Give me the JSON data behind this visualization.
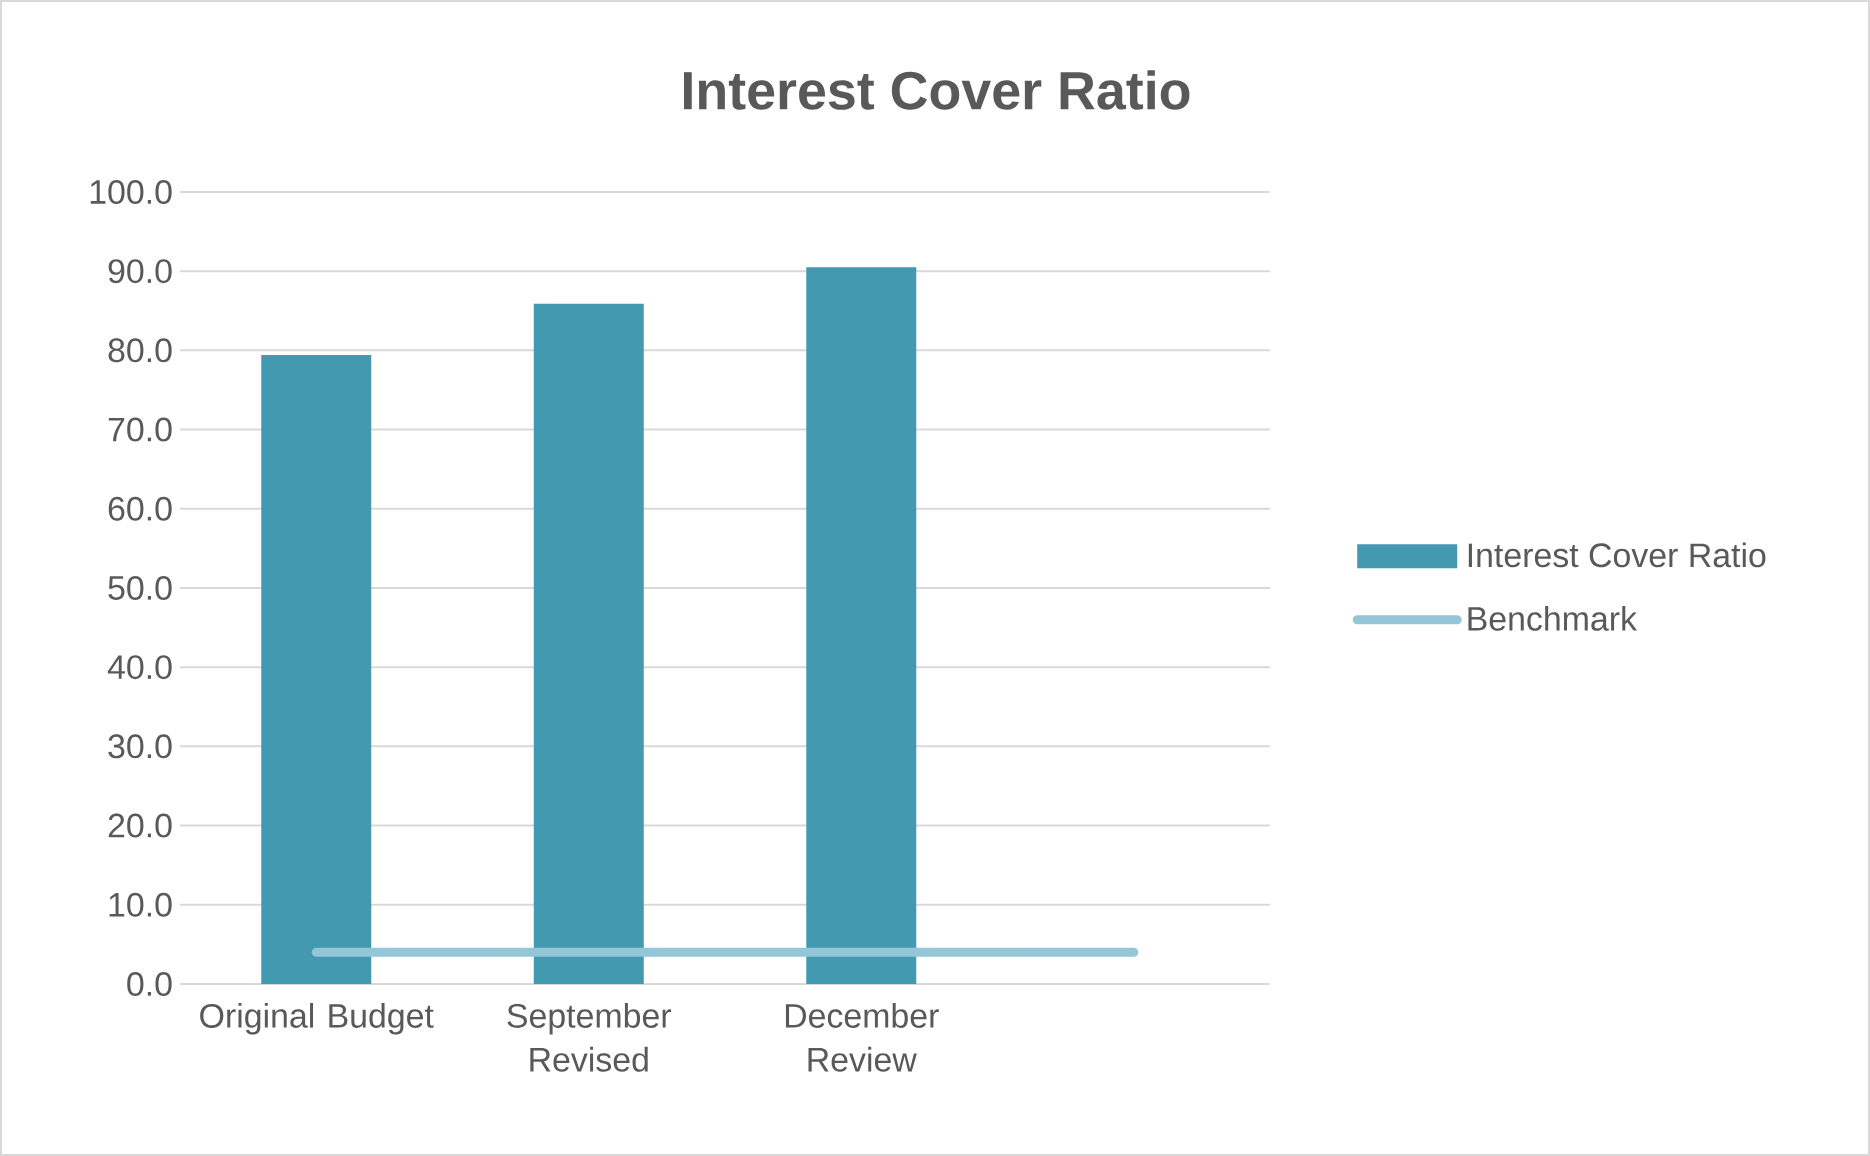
{
  "chart_data": {
    "type": "bar",
    "title": "Interest Cover Ratio",
    "categories": [
      "Original Budget",
      "September Revised",
      "December Review",
      null
    ],
    "series": [
      {
        "name": "Interest Cover Ratio",
        "type": "bar",
        "color": "#4399b0",
        "values": [
          79.4,
          85.9,
          90.5,
          null
        ]
      },
      {
        "name": "Benchmark",
        "type": "line",
        "color": "#93c6d6",
        "values": [
          4.0,
          4.0,
          4.0,
          4.0
        ]
      }
    ],
    "ylim": [
      0,
      100
    ],
    "yticks": [
      {
        "value": 0,
        "label": "0.0"
      },
      {
        "value": 10,
        "label": "10.0"
      },
      {
        "value": 20,
        "label": "20.0"
      },
      {
        "value": 30,
        "label": "30.0"
      },
      {
        "value": 40,
        "label": "40.0"
      },
      {
        "value": 50,
        "label": "50.0"
      },
      {
        "value": 60,
        "label": "60.0"
      },
      {
        "value": 70,
        "label": "70.0"
      },
      {
        "value": 80,
        "label": "80.0"
      },
      {
        "value": 90,
        "label": "90.0"
      },
      {
        "value": 100,
        "label": "100.0"
      }
    ],
    "grid": "y",
    "legend": "right"
  }
}
